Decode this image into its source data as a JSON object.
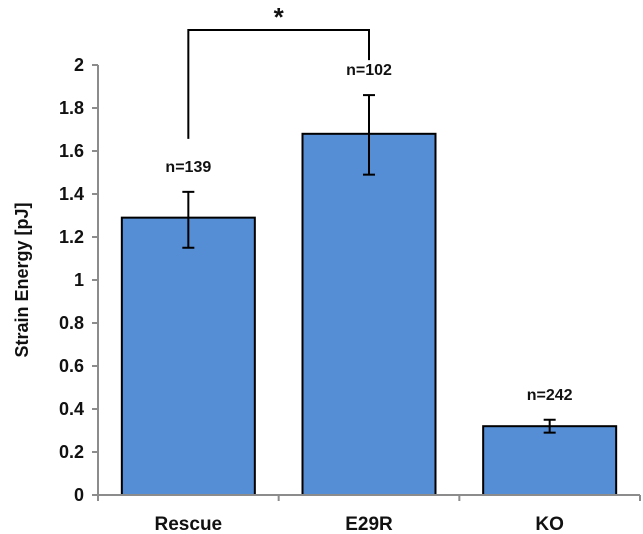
{
  "chart_data": {
    "type": "bar",
    "categories": [
      "Rescue",
      "E29R",
      "KO"
    ],
    "values": [
      1.29,
      1.68,
      0.32
    ],
    "error_bars": [
      {
        "lower": 1.15,
        "upper": 1.41
      },
      {
        "lower": 1.49,
        "upper": 1.86
      },
      {
        "lower": 0.29,
        "upper": 0.35
      }
    ],
    "data_labels": [
      "n=139",
      "n=102",
      "n=242"
    ],
    "title": "",
    "xlabel": "",
    "ylabel": "Strain Energy [pJ]",
    "ylim": [
      0,
      2
    ],
    "yticks": [
      0,
      0.2,
      0.4,
      0.6,
      0.8,
      1,
      1.2,
      1.4,
      1.6,
      1.8,
      2
    ],
    "ytick_labels": [
      "0",
      "0.2",
      "0.4",
      "0.6",
      "0.8",
      "1",
      "1.2",
      "1.4",
      "1.6",
      "1.8",
      "2"
    ],
    "grid": false,
    "legend": "none",
    "bar_color": "#558ED5",
    "significance": {
      "between": [
        "Rescue",
        "E29R"
      ],
      "label": "*"
    }
  }
}
